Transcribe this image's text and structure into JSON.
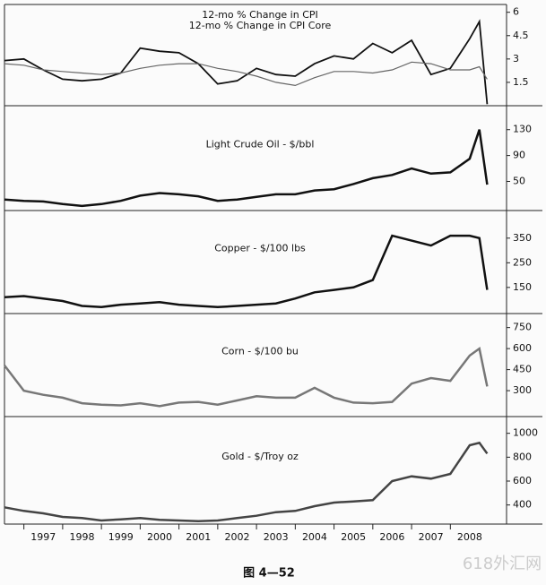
{
  "chart_data": [
    {
      "type": "line",
      "series": [
        {
          "name": "12-mo % Change in CPI",
          "color": "#111111",
          "values": [
            2.9,
            3.0,
            2.3,
            1.7,
            1.6,
            1.7,
            2.1,
            3.7,
            3.5,
            3.4,
            2.7,
            1.4,
            1.6,
            2.4,
            2.0,
            1.9,
            2.7,
            3.2,
            3.0,
            4.0,
            3.4,
            4.2,
            2.0,
            2.4,
            4.3,
            5.4,
            0.1
          ]
        },
        {
          "name": "12-mo % Change in CPI Core",
          "color": "#666666",
          "values": [
            2.7,
            2.6,
            2.3,
            2.2,
            2.1,
            2.0,
            2.1,
            2.4,
            2.6,
            2.7,
            2.7,
            2.4,
            2.2,
            1.9,
            1.5,
            1.3,
            1.8,
            2.2,
            2.2,
            2.1,
            2.3,
            2.8,
            2.7,
            2.3,
            2.3,
            2.5,
            1.7
          ]
        }
      ],
      "x": [
        1996.5,
        1997,
        1997.5,
        1998,
        1998.5,
        1999,
        1999.5,
        2000,
        2000.5,
        2001,
        2001.5,
        2002,
        2002.5,
        2003,
        2003.5,
        2004,
        2004.5,
        2005,
        2005.5,
        2006,
        2006.5,
        2007,
        2007.5,
        2008,
        2008.5,
        2008.75,
        2008.95
      ],
      "xlim": [
        1996.5,
        2009.45
      ],
      "ylim": [
        0,
        6.5
      ],
      "yticks": [
        1.5,
        3,
        4.5,
        6
      ]
    },
    {
      "type": "line",
      "title": "Light Crude Oil - $/bbl",
      "color": "#111111",
      "x": [
        1996.5,
        1997,
        1997.5,
        1998,
        1998.5,
        1999,
        1999.5,
        2000,
        2000.5,
        2001,
        2001.5,
        2002,
        2002.5,
        2003,
        2003.5,
        2004,
        2004.5,
        2005,
        2005.5,
        2006,
        2006.5,
        2007,
        2007.5,
        2008,
        2008.5,
        2008.75,
        2008.95
      ],
      "values": [
        22,
        20,
        19,
        15,
        12,
        15,
        20,
        28,
        32,
        30,
        27,
        20,
        22,
        26,
        30,
        30,
        36,
        38,
        46,
        55,
        60,
        70,
        62,
        64,
        85,
        130,
        45
      ],
      "xlim": [
        1996.5,
        2009.45
      ],
      "ylim": [
        5,
        167
      ],
      "yticks": [
        50,
        90,
        130
      ]
    },
    {
      "type": "line",
      "title": "Copper - $/100 lbs",
      "color": "#111111",
      "x": [
        1996.5,
        1997,
        1997.5,
        1998,
        1998.5,
        1999,
        1999.5,
        2000,
        2000.5,
        2001,
        2001.5,
        2002,
        2002.5,
        2003,
        2003.5,
        2004,
        2004.5,
        2005,
        2005.5,
        2006,
        2006.5,
        2007,
        2007.5,
        2008,
        2008.5,
        2008.75,
        2008.95
      ],
      "values": [
        110,
        115,
        105,
        95,
        75,
        70,
        80,
        85,
        90,
        80,
        75,
        70,
        75,
        80,
        85,
        105,
        130,
        140,
        150,
        180,
        360,
        340,
        320,
        360,
        360,
        350,
        140
      ],
      "xlim": [
        1996.5,
        2009.45
      ],
      "ylim": [
        44,
        462
      ],
      "yticks": [
        150,
        250,
        350
      ]
    },
    {
      "type": "line",
      "title": "Corn - $/100 bu",
      "color": "#777777",
      "x": [
        1996.5,
        1997,
        1997.5,
        1998,
        1998.5,
        1999,
        1999.5,
        2000,
        2000.5,
        2001,
        2001.5,
        2002,
        2002.5,
        2003,
        2003.5,
        2004,
        2004.5,
        2005,
        2005.5,
        2006,
        2006.5,
        2007,
        2007.5,
        2008,
        2008.5,
        2008.75,
        2008.95
      ],
      "values": [
        480,
        300,
        270,
        250,
        210,
        200,
        195,
        210,
        190,
        215,
        220,
        200,
        230,
        260,
        250,
        250,
        320,
        250,
        215,
        210,
        220,
        350,
        390,
        370,
        550,
        600,
        330
      ],
      "xlim": [
        1996.5,
        2009.45
      ],
      "ylim": [
        115,
        850
      ],
      "yticks": [
        300,
        450,
        600,
        750
      ]
    },
    {
      "type": "line",
      "title": "Gold - $/Troy oz",
      "color": "#444444",
      "x": [
        1996.5,
        1997,
        1997.5,
        1998,
        1998.5,
        1999,
        1999.5,
        2000,
        2000.5,
        2001,
        2001.5,
        2002,
        2002.5,
        2003,
        2003.5,
        2004,
        2004.5,
        2005,
        2005.5,
        2006,
        2006.5,
        2007,
        2007.5,
        2008,
        2008.5,
        2008.75,
        2008.95
      ],
      "values": [
        380,
        350,
        330,
        300,
        290,
        270,
        280,
        290,
        275,
        270,
        265,
        270,
        290,
        310,
        340,
        350,
        390,
        420,
        430,
        440,
        600,
        640,
        620,
        660,
        900,
        920,
        830
      ],
      "xlim": [
        1996.5,
        2009.45
      ],
      "ylim": [
        240,
        1140
      ],
      "yticks": [
        400,
        600,
        800,
        1000
      ],
      "xticks": [
        {
          "value": 1997.5,
          "label": "1997"
        },
        {
          "value": 1998.5,
          "label": "1998"
        },
        {
          "value": 1999.5,
          "label": "1999"
        },
        {
          "value": 2000.5,
          "label": "2000"
        },
        {
          "value": 2001.5,
          "label": "2001"
        },
        {
          "value": 2002.5,
          "label": "2002"
        },
        {
          "value": 2003.5,
          "label": "2003"
        },
        {
          "value": 2004.5,
          "label": "2004"
        },
        {
          "value": 2005.5,
          "label": "2005"
        },
        {
          "value": 2006.5,
          "label": "2006"
        },
        {
          "value": 2007.5,
          "label": "2007"
        },
        {
          "value": 2008.5,
          "label": "2008"
        }
      ]
    }
  ],
  "caption": "图 4—52",
  "watermark": "618外汇网"
}
